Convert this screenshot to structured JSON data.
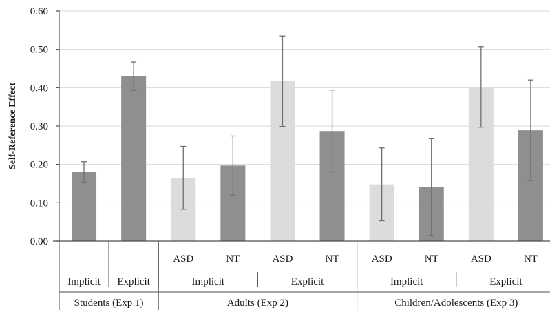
{
  "chart_data": {
    "type": "bar",
    "ylabel": "Self-Reference Effect",
    "ylim": [
      0,
      0.6
    ],
    "yticks": [
      "0.00",
      "0.10",
      "0.20",
      "0.30",
      "0.40",
      "0.50",
      "0.60"
    ],
    "colors": {
      "ASD": "#dcdcdc",
      "NT": "#8f8f8f",
      "error_bar": "#6e6e6e",
      "axis": "#4d4d4d"
    },
    "bars": [
      {
        "experiment": "Students (Exp 1)",
        "task": "Implicit",
        "group": "",
        "value": 0.18,
        "error": 0.027,
        "fill": "NT"
      },
      {
        "experiment": "Students (Exp 1)",
        "task": "Explicit",
        "group": "",
        "value": 0.43,
        "error": 0.037,
        "fill": "NT"
      },
      {
        "experiment": "Adults (Exp 2)",
        "task": "Implicit",
        "group": "ASD",
        "value": 0.165,
        "error": 0.082,
        "fill": "ASD"
      },
      {
        "experiment": "Adults (Exp 2)",
        "task": "Implicit",
        "group": "NT",
        "value": 0.197,
        "error": 0.077,
        "fill": "NT"
      },
      {
        "experiment": "Adults (Exp 2)",
        "task": "Explicit",
        "group": "ASD",
        "value": 0.417,
        "error": 0.118,
        "fill": "ASD"
      },
      {
        "experiment": "Adults (Exp 2)",
        "task": "Explicit",
        "group": "NT",
        "value": 0.287,
        "error": 0.107,
        "fill": "NT"
      },
      {
        "experiment": "Children/Adolescents (Exp 3)",
        "task": "Implicit",
        "group": "ASD",
        "value": 0.148,
        "error": 0.095,
        "fill": "ASD"
      },
      {
        "experiment": "Children/Adolescents (Exp 3)",
        "task": "Implicit",
        "group": "NT",
        "value": 0.141,
        "error": 0.126,
        "fill": "NT"
      },
      {
        "experiment": "Children/Adolescents (Exp 3)",
        "task": "Explicit",
        "group": "ASD",
        "value": 0.402,
        "error": 0.105,
        "fill": "ASD"
      },
      {
        "experiment": "Children/Adolescents (Exp 3)",
        "task": "Explicit",
        "group": "NT",
        "value": 0.289,
        "error": 0.131,
        "fill": "NT"
      }
    ],
    "task_groups": [
      {
        "label": "Implicit",
        "bars": [
          0
        ]
      },
      {
        "label": "Explicit",
        "bars": [
          1
        ]
      },
      {
        "label": "Implicit",
        "bars": [
          2,
          3
        ]
      },
      {
        "label": "Explicit",
        "bars": [
          4,
          5
        ]
      },
      {
        "label": "Implicit",
        "bars": [
          6,
          7
        ]
      },
      {
        "label": "Explicit",
        "bars": [
          8,
          9
        ]
      }
    ],
    "experiment_groups": [
      {
        "label": "Students (Exp 1)",
        "bars": [
          0,
          1
        ]
      },
      {
        "label": "Adults (Exp 2)",
        "bars": [
          2,
          3,
          4,
          5
        ]
      },
      {
        "label": "Children/Adolescents (Exp 3)",
        "bars": [
          6,
          7,
          8,
          9
        ]
      }
    ]
  }
}
